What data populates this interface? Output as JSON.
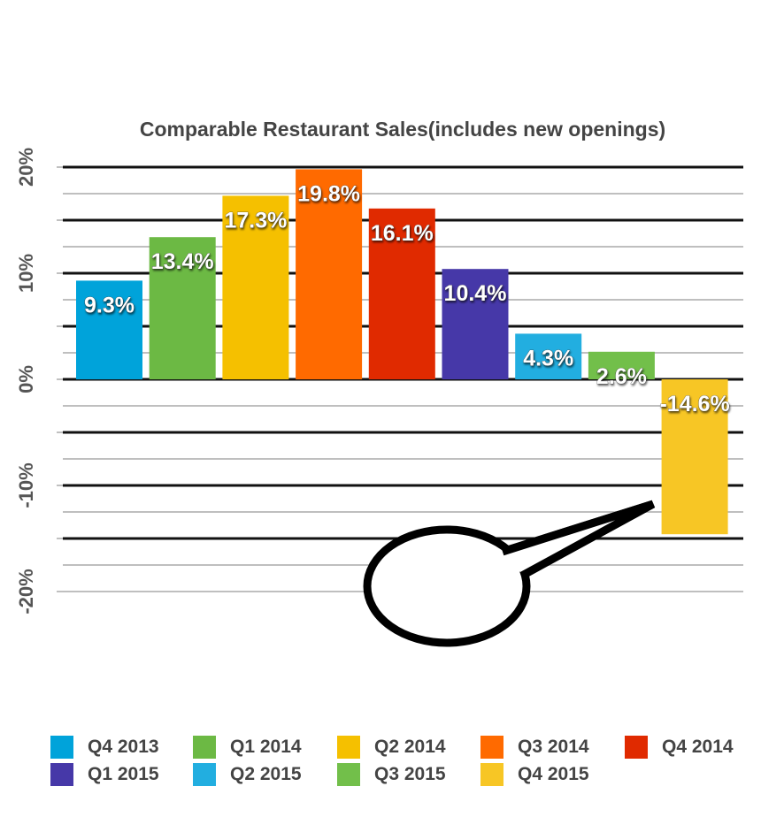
{
  "chart_data": {
    "type": "bar",
    "title": "Comparable Restaurant Sales(includes new openings)",
    "xlabel": "",
    "ylabel": "",
    "ylim": [
      -20,
      20
    ],
    "yticks": [
      "20%",
      "10%",
      "0%",
      "-10%",
      "-20%"
    ],
    "yticks_values": [
      20,
      10,
      0,
      -10,
      -20
    ],
    "grid": true,
    "legend_position": "bottom",
    "categories": [
      "Q4 2013",
      "Q1 2014",
      "Q2 2014",
      "Q3 2014",
      "Q4 2014",
      "Q1 2015",
      "Q2 2015",
      "Q3 2015",
      "Q4 2015"
    ],
    "values": [
      9.3,
      13.4,
      17.3,
      19.8,
      16.1,
      10.4,
      4.3,
      2.6,
      -14.6
    ],
    "data_labels": [
      "9.3%",
      "13.4%",
      "17.3%",
      "19.8%",
      "16.1%",
      "10.4%",
      "4.3%",
      "2.6%",
      "-14.6%"
    ],
    "colors": [
      "#00A3DA",
      "#6CB944",
      "#F5C000",
      "#FF6A00",
      "#E02A00",
      "#4638A8",
      "#22AEE0",
      "#72BF4A",
      "#F7C625"
    ],
    "annotation": "empty speech bubble pointing at Q4 2015 bar"
  }
}
